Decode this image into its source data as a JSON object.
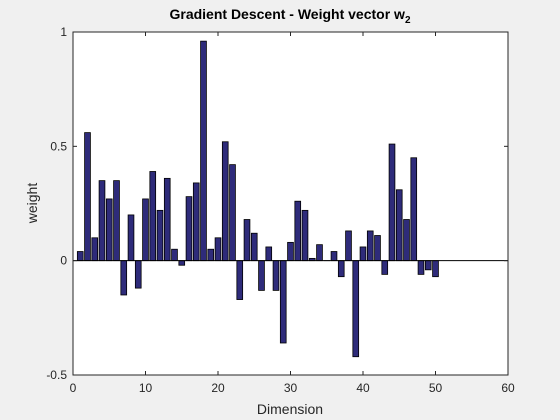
{
  "chart_data": {
    "type": "bar",
    "title": "Gradient Descent - Weight vector w",
    "title_subscript": "2",
    "xlabel": "Dimension",
    "ylabel": "weight",
    "xlim": [
      0,
      60
    ],
    "ylim": [
      -0.5,
      1
    ],
    "xticks": [
      0,
      10,
      20,
      30,
      40,
      50,
      60
    ],
    "yticks": [
      -0.5,
      0,
      0.5,
      1
    ],
    "ytick_labels": [
      "-0.5",
      "0",
      "0.5",
      "1"
    ],
    "grid": false,
    "legend": "none",
    "colors": {
      "bar_fill": "#2e2b7a",
      "bar_edge": "#000000",
      "axes_bg": "#ffffff",
      "figure_bg": "#f0f0f0"
    },
    "x": [
      1,
      2,
      3,
      4,
      5,
      6,
      7,
      8,
      9,
      10,
      11,
      12,
      13,
      14,
      15,
      16,
      17,
      18,
      19,
      20,
      21,
      22,
      23,
      24,
      25,
      26,
      27,
      28,
      29,
      30,
      31,
      32,
      33,
      34,
      35,
      36,
      37,
      38,
      39,
      40,
      41,
      42,
      43,
      44,
      45,
      46,
      47,
      48,
      49,
      50
    ],
    "values": [
      0.04,
      0.56,
      0.1,
      0.35,
      0.27,
      0.35,
      -0.15,
      0.2,
      -0.12,
      0.27,
      0.39,
      0.22,
      0.36,
      0.05,
      -0.02,
      0.28,
      0.34,
      0.96,
      0.05,
      0.1,
      0.52,
      0.42,
      -0.17,
      0.18,
      0.12,
      -0.13,
      0.06,
      -0.13,
      -0.36,
      0.08,
      0.26,
      0.22,
      0.01,
      0.07,
      0.0,
      0.04,
      -0.07,
      0.13,
      -0.42,
      0.06,
      0.13,
      0.11,
      -0.06,
      0.51,
      0.31,
      0.18,
      0.45,
      -0.06,
      -0.04,
      -0.07
    ]
  }
}
